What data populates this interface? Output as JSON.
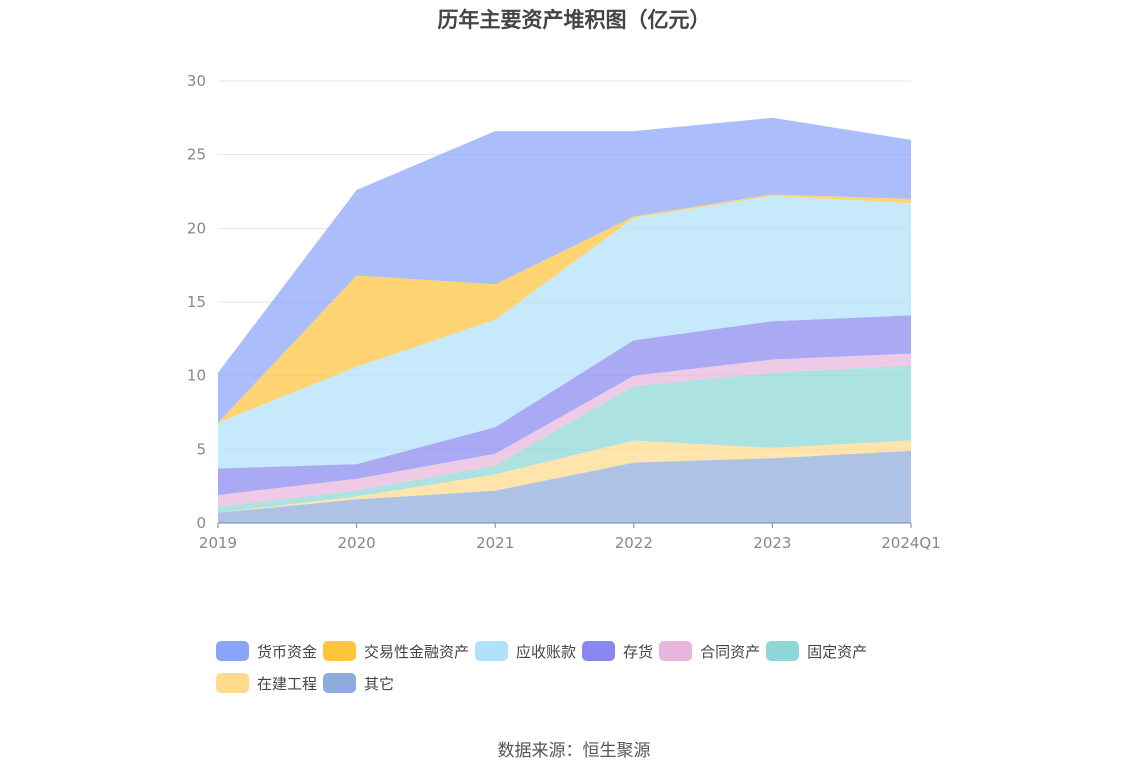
{
  "chart_data": {
    "type": "area",
    "stacked": true,
    "title": "历年主要资产堆积图（亿元）",
    "categories": [
      "2019",
      "2020",
      "2021",
      "2022",
      "2023",
      "2024Q1"
    ],
    "ylim": [
      0,
      30
    ],
    "yticks": [
      0,
      5,
      10,
      15,
      20,
      25,
      30
    ],
    "grid": true,
    "legend_position": "bottom",
    "series": [
      {
        "name": "其它",
        "color": "#8faadc",
        "values": [
          0.7,
          1.6,
          2.2,
          4.1,
          4.4,
          4.9
        ]
      },
      {
        "name": "在建工程",
        "color": "#ffd98c",
        "values": [
          0.0,
          0.2,
          1.1,
          1.5,
          0.7,
          0.7
        ]
      },
      {
        "name": "固定资产",
        "color": "#8dd7d7",
        "values": [
          0.4,
          0.4,
          0.6,
          3.7,
          5.1,
          5.1
        ]
      },
      {
        "name": "合同资产",
        "color": "#e8b6dc",
        "values": [
          0.8,
          0.8,
          0.8,
          0.7,
          0.9,
          0.8
        ]
      },
      {
        "name": "存货",
        "color": "#8888f0",
        "values": [
          1.8,
          1.0,
          1.8,
          2.4,
          2.6,
          2.6
        ]
      },
      {
        "name": "应收账款",
        "color": "#b0e2fa",
        "values": [
          3.1,
          6.6,
          7.3,
          8.3,
          8.5,
          7.6
        ]
      },
      {
        "name": "交易性金融资产",
        "color": "#ffc53d",
        "values": [
          0.0,
          6.2,
          2.4,
          0.1,
          0.1,
          0.3
        ]
      },
      {
        "name": "货币资金",
        "color": "#8aa4f8",
        "values": [
          3.4,
          5.8,
          10.4,
          5.8,
          5.2,
          4.0
        ]
      }
    ],
    "legend_order": [
      "货币资金",
      "交易性金融资产",
      "应收账款",
      "存货",
      "合同资产",
      "固定资产",
      "在建工程",
      "其它"
    ]
  },
  "source_note": "数据来源：恒生聚源"
}
